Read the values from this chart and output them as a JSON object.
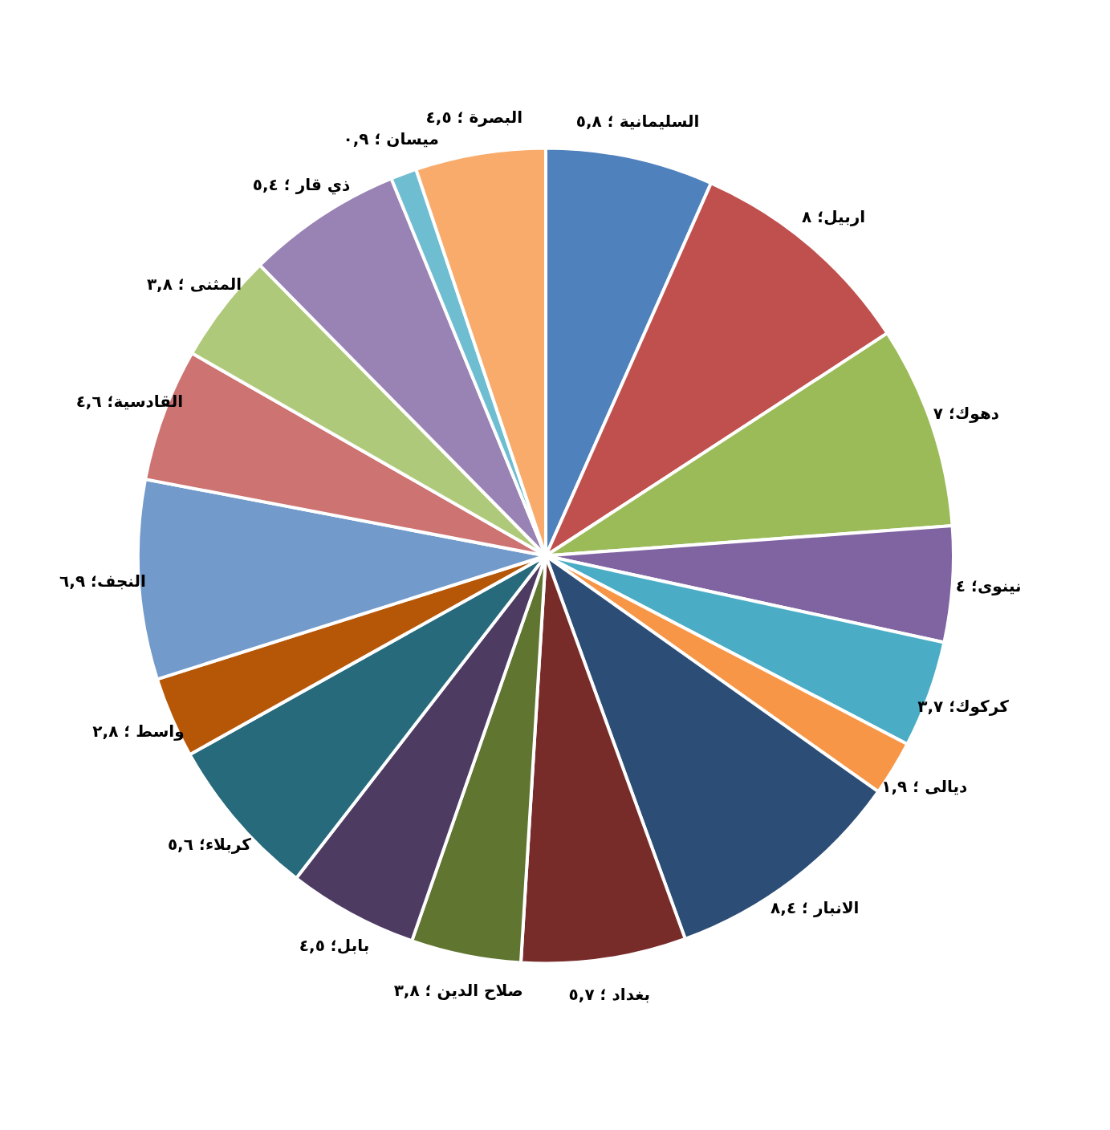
{
  "chart_data": {
    "type": "pie",
    "categories": [
      "السليمانية",
      "اربيل",
      "دهوك",
      "نينوى",
      "كركوك",
      "ديالى",
      "الانبار",
      "بغداد",
      "صلاح الدين",
      "بابل",
      "كربلاء",
      "واسط",
      "النجف",
      "القادسية",
      "المثنى",
      "ذي قار",
      "ميسان",
      "البصرة"
    ],
    "values": [
      5.8,
      8,
      7,
      4,
      3.7,
      1.9,
      8.4,
      5.7,
      3.8,
      4.5,
      5.6,
      2.8,
      6.9,
      4.6,
      3.8,
      5.4,
      0.9,
      4.5
    ],
    "colors": [
      "#4f81bd",
      "#c0504d",
      "#9bbb59",
      "#8064a2",
      "#4bacc6",
      "#f79646",
      "#2c4d75",
      "#772c2a",
      "#5f7530",
      "#4d3b62",
      "#276a7c",
      "#b65708",
      "#729aca",
      "#cd7371",
      "#afc97a",
      "#9983b5",
      "#6fbdd1",
      "#f9ab6b"
    ],
    "value_labels": [
      " ؛ ٥,٨",
      "؛ ٨",
      "؛ ٧",
      "؛ ٤",
      "؛ ٣,٧",
      " ؛ ١,٩",
      " ؛ ٨,٤",
      " ؛ ٥,٧",
      " ؛ ٣,٨",
      "؛ ٤,٥",
      "؛ ٥,٦",
      " ؛ ٢,٨",
      "؛ ٦,٩",
      "؛ ٤,٦",
      " ؛ ٣,٨",
      " ؛ ٥,٤",
      " ؛ ٠,٩",
      " ؛ ٤,٥"
    ],
    "legend": false
  }
}
